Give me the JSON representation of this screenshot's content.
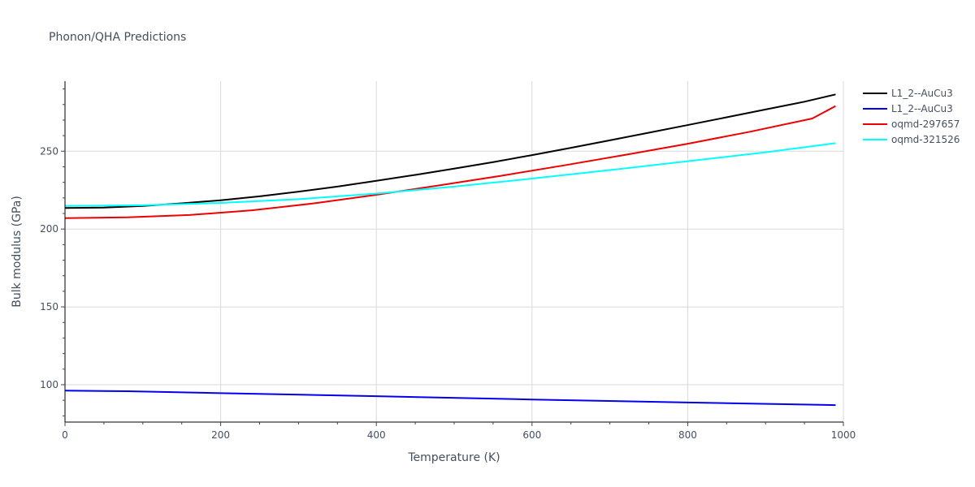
{
  "chart_data": {
    "type": "line",
    "title": "Phonon/QHA Predictions",
    "xlabel": "Temperature (K)",
    "ylabel": "Bulk modulus (GPa)",
    "xlim": [
      0,
      1000
    ],
    "ylim": [
      76,
      295
    ],
    "x_ticks": [
      0,
      200,
      400,
      600,
      800,
      1000
    ],
    "y_ticks": [
      100,
      150,
      200,
      250
    ],
    "grid": true,
    "legend_position": "top-right",
    "series": [
      {
        "name": "L1_2--AuCu3",
        "color": "#000000",
        "x": [
          0,
          50,
          100,
          150,
          200,
          250,
          300,
          350,
          400,
          450,
          500,
          550,
          600,
          650,
          700,
          750,
          800,
          850,
          900,
          950,
          990
        ],
        "y": [
          213.5,
          213.8,
          214.8,
          216.5,
          218.5,
          221.0,
          224.0,
          227.3,
          231.0,
          234.8,
          238.8,
          243.0,
          247.5,
          252.2,
          257.0,
          261.9,
          266.8,
          271.8,
          276.8,
          281.8,
          286.5
        ]
      },
      {
        "name": "L1_2--AuCu3",
        "color": "#0000ee",
        "x": [
          0,
          80,
          200,
          400,
          600,
          800,
          990
        ],
        "y": [
          96.2,
          95.8,
          94.6,
          92.6,
          90.5,
          88.6,
          86.9
        ]
      },
      {
        "name": "oqmd-297657",
        "color": "#ee0000",
        "x": [
          0,
          80,
          160,
          240,
          320,
          400,
          480,
          560,
          640,
          720,
          800,
          880,
          960,
          990
        ],
        "y": [
          207.0,
          207.5,
          209.0,
          212.0,
          216.5,
          222.0,
          228.0,
          234.2,
          240.8,
          247.7,
          254.8,
          262.5,
          271.0,
          279.0
        ]
      },
      {
        "name": "oqmd-321526",
        "color": "#00ffff",
        "x": [
          0,
          100,
          200,
          300,
          400,
          500,
          600,
          700,
          800,
          900,
          990
        ],
        "y": [
          214.8,
          215.3,
          216.8,
          219.2,
          222.8,
          227.3,
          232.4,
          237.9,
          243.6,
          249.3,
          255.2
        ]
      }
    ]
  }
}
